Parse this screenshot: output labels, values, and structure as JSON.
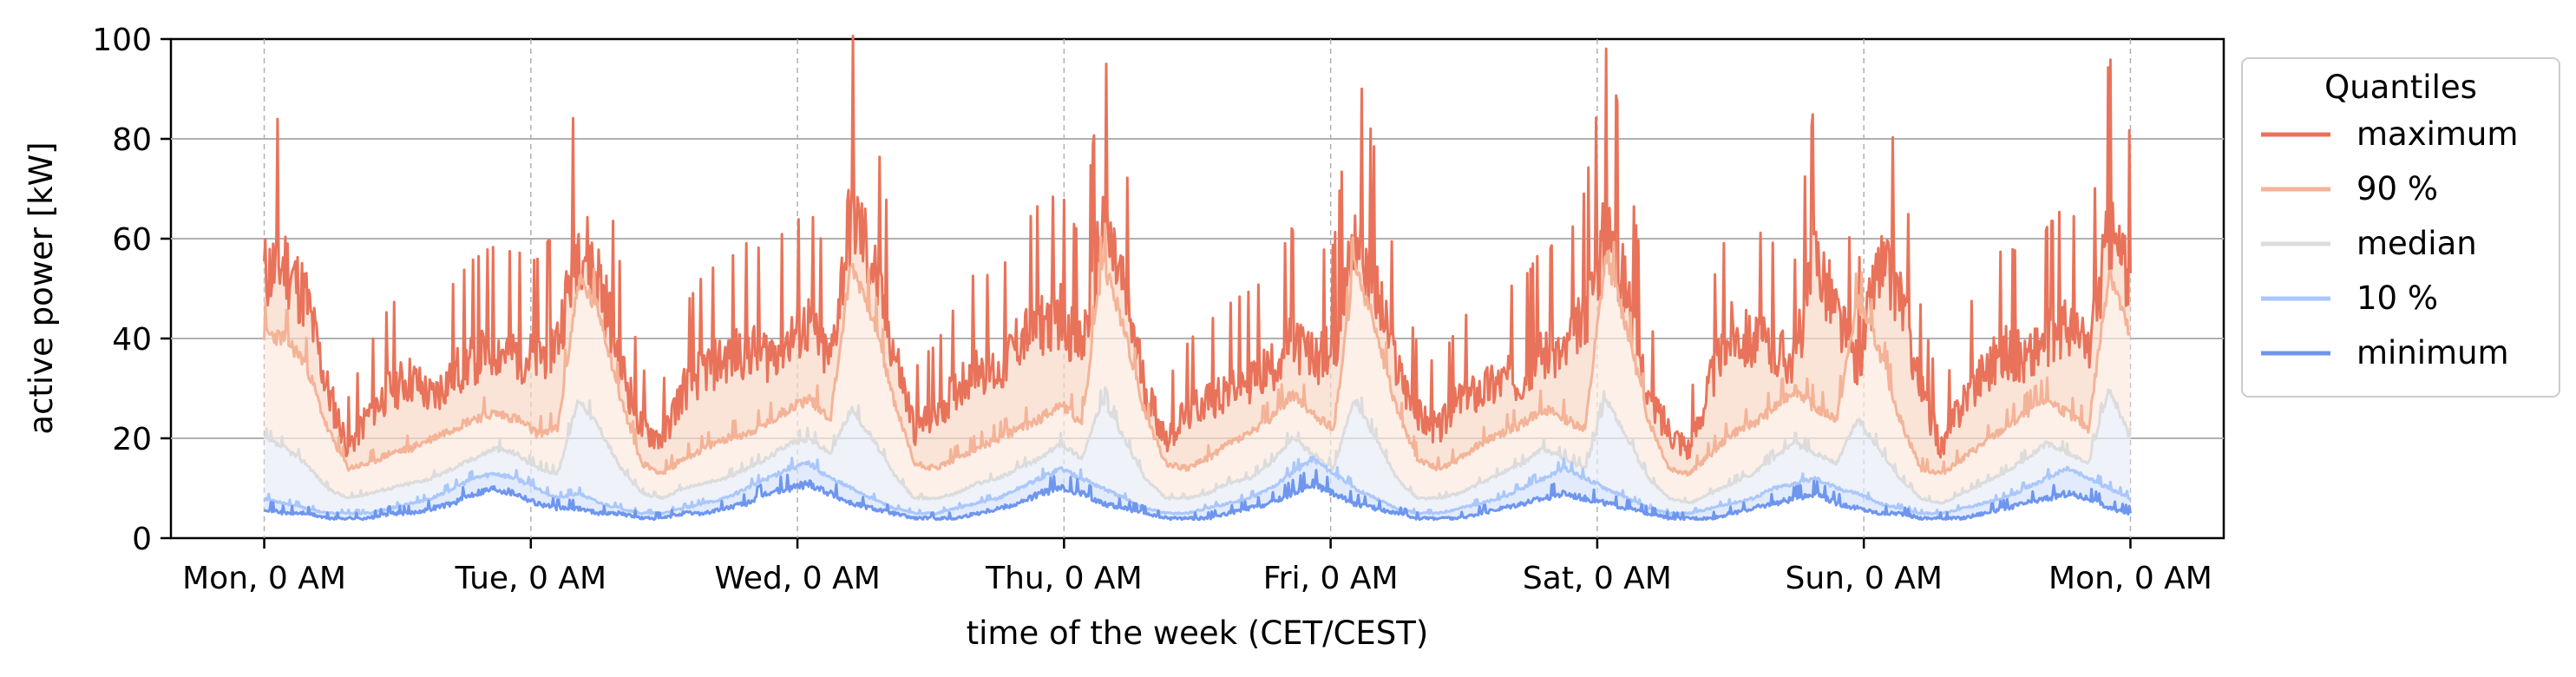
{
  "chart_data": {
    "type": "line",
    "title": "",
    "xlabel": "time of the week (CET/CEST)",
    "ylabel": "active power [kW]",
    "ylim": [
      0,
      100
    ],
    "y_ticks": [
      0,
      20,
      40,
      60,
      80,
      100
    ],
    "x_ticks": [
      "Mon, 0 AM",
      "Tue, 0 AM",
      "Wed, 0 AM",
      "Thu, 0 AM",
      "Fri, 0 AM",
      "Sat, 0 AM",
      "Sun, 0 AM",
      "Mon, 0 AM"
    ],
    "x_range_days": [
      -0.35,
      7.35
    ],
    "grid": {
      "y": "solid",
      "x": "dashed"
    },
    "legend": {
      "title": "Quantiles",
      "placement": "outside-right"
    },
    "series": [
      {
        "name": "maximum",
        "color": "#e8735a",
        "values": [
          53,
          55,
          48,
          30,
          18,
          25,
          30,
          32,
          28,
          33,
          36,
          38,
          37,
          36,
          40,
          60,
          52,
          35,
          22,
          20,
          30,
          34,
          36,
          38,
          37,
          40,
          43,
          35,
          66,
          55,
          38,
          22,
          25,
          30,
          35,
          33,
          40,
          43,
          45,
          38,
          63,
          50,
          30,
          20,
          25,
          28,
          30,
          32,
          34,
          40,
          36,
          38,
          62,
          50,
          35,
          25,
          22,
          28,
          30,
          32,
          33,
          38,
          37,
          45,
          63,
          50,
          28,
          22,
          18,
          32,
          42,
          40,
          38,
          36,
          58,
          45,
          35,
          55,
          50,
          30,
          18,
          28,
          34,
          38,
          36,
          40,
          43,
          38,
          62,
          52
        ]
      },
      {
        "name": "90 %",
        "color": "#f4b397",
        "values": [
          41,
          40,
          35,
          22,
          14,
          15,
          17,
          18,
          20,
          22,
          24,
          25,
          24,
          21,
          22,
          52,
          45,
          28,
          15,
          13,
          16,
          18,
          20,
          21,
          23,
          26,
          28,
          24,
          55,
          45,
          28,
          15,
          14,
          16,
          18,
          20,
          22,
          24,
          27,
          23,
          56,
          42,
          25,
          15,
          14,
          16,
          19,
          21,
          24,
          29,
          25,
          22,
          55,
          42,
          26,
          16,
          14,
          16,
          19,
          21,
          23,
          26,
          24,
          22,
          57,
          42,
          24,
          14,
          13,
          17,
          21,
          23,
          26,
          30,
          26,
          24,
          48,
          38,
          24,
          14,
          13,
          16,
          19,
          22,
          25,
          28,
          25,
          22,
          54,
          40
        ]
      },
      {
        "name": "median",
        "color": "#dcdcdc",
        "values": [
          20,
          18,
          15,
          10,
          8,
          9,
          10,
          11,
          12,
          14,
          16,
          18,
          17,
          14,
          13,
          28,
          22,
          14,
          9,
          8,
          10,
          11,
          12,
          14,
          16,
          19,
          20,
          17,
          26,
          20,
          13,
          8,
          8,
          9,
          11,
          12,
          14,
          16,
          19,
          16,
          28,
          20,
          12,
          8,
          8,
          9,
          11,
          12,
          15,
          20,
          17,
          14,
          28,
          20,
          12,
          8,
          8,
          9,
          11,
          13,
          15,
          18,
          16,
          14,
          28,
          20,
          12,
          8,
          7,
          9,
          11,
          13,
          16,
          19,
          17,
          15,
          24,
          18,
          12,
          8,
          7,
          9,
          11,
          13,
          16,
          19,
          17,
          15,
          30,
          20
        ]
      },
      {
        "name": "10 %",
        "color": "#aac7fb",
        "values": [
          8,
          7,
          6,
          5,
          5,
          5,
          6,
          7,
          8,
          10,
          12,
          13,
          12,
          10,
          8,
          9,
          7,
          6,
          5,
          5,
          6,
          7,
          8,
          10,
          12,
          14,
          15,
          12,
          10,
          8,
          6,
          5,
          5,
          6,
          7,
          8,
          10,
          12,
          14,
          12,
          10,
          8,
          6,
          5,
          5,
          6,
          7,
          8,
          10,
          13,
          16,
          13,
          10,
          8,
          6,
          5,
          5,
          6,
          7,
          8,
          10,
          12,
          14,
          12,
          10,
          8,
          6,
          5,
          5,
          6,
          7,
          8,
          10,
          11,
          12,
          10,
          9,
          7,
          6,
          5,
          5,
          6,
          7,
          8,
          10,
          12,
          14,
          12,
          10,
          8
        ]
      },
      {
        "name": "minimum",
        "color": "#6e96ef",
        "values": [
          6,
          5,
          5,
          4,
          4,
          4,
          5,
          5,
          6,
          7,
          9,
          10,
          9,
          7,
          6,
          6,
          5,
          5,
          4,
          4,
          5,
          5,
          6,
          7,
          9,
          10,
          11,
          9,
          7,
          6,
          5,
          4,
          4,
          4,
          5,
          6,
          7,
          9,
          10,
          9,
          7,
          6,
          5,
          4,
          4,
          4,
          5,
          6,
          7,
          9,
          11,
          9,
          7,
          6,
          5,
          4,
          4,
          4,
          5,
          6,
          7,
          8,
          9,
          8,
          7,
          6,
          5,
          4,
          4,
          4,
          5,
          6,
          7,
          8,
          9,
          7,
          6,
          5,
          5,
          4,
          4,
          4,
          5,
          6,
          7,
          8,
          9,
          8,
          6,
          5
        ]
      }
    ]
  }
}
